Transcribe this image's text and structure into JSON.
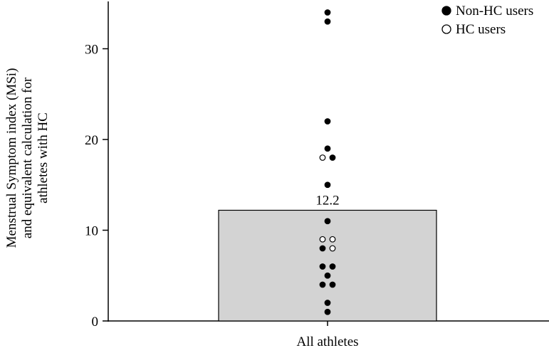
{
  "chart_data": {
    "type": "bar",
    "categories": [
      "All athletes"
    ],
    "values": [
      12.2
    ],
    "value_labels": [
      "12.2"
    ],
    "ylabel_lines": [
      "Menstrual Symptom index (MSi)",
      "and equivalent calculation for",
      "athletes with  HC"
    ],
    "ylim": [
      0,
      35
    ],
    "yticks": [
      0,
      10,
      20,
      30
    ],
    "grid": false,
    "legend_position": "top-right",
    "bar_color": "#d3d3d3",
    "series": [
      {
        "name": "Non-HC users",
        "marker": "filled",
        "points": [
          {
            "y": 34,
            "offset": 0
          },
          {
            "y": 33,
            "offset": 0
          },
          {
            "y": 22,
            "offset": 0
          },
          {
            "y": 19,
            "offset": 0
          },
          {
            "y": 18,
            "offset": 1
          },
          {
            "y": 15,
            "offset": 0
          },
          {
            "y": 11,
            "offset": 0
          },
          {
            "y": 8,
            "offset": -1
          },
          {
            "y": 6,
            "offset": -1
          },
          {
            "y": 6,
            "offset": 1
          },
          {
            "y": 5,
            "offset": 0
          },
          {
            "y": 4,
            "offset": -1
          },
          {
            "y": 4,
            "offset": 1
          },
          {
            "y": 2,
            "offset": 0
          },
          {
            "y": 1,
            "offset": 0
          }
        ]
      },
      {
        "name": "HC users",
        "marker": "open",
        "points": [
          {
            "y": 18,
            "offset": -1
          },
          {
            "y": 9,
            "offset": -1
          },
          {
            "y": 9,
            "offset": 1
          },
          {
            "y": 8,
            "offset": 1
          }
        ]
      }
    ]
  }
}
